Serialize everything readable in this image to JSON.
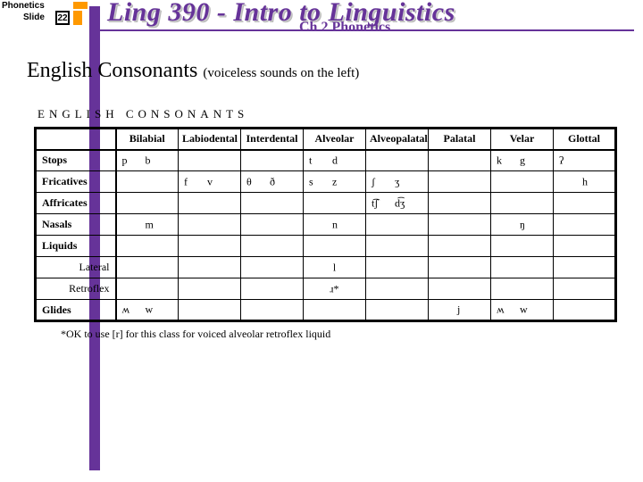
{
  "header": {
    "topic": "Phonetics",
    "slide_word": "Slide",
    "slide_number": "22",
    "course_title": "Ling 390 - Intro to Linguistics",
    "chapter_title": "Ch 2 Phonetics"
  },
  "title": {
    "main": "English Consonants",
    "sub": "(voiceless sounds on the left)"
  },
  "table": {
    "caption": "ENGLISH CONSONANTS",
    "columns": [
      "",
      "Bilabial",
      "Labiodental",
      "Interdental",
      "Alveolar",
      "Alveopalatal",
      "Palatal",
      "Velar",
      "Glottal"
    ],
    "rows": [
      {
        "label": "Stops",
        "cells": [
          {
            "vl": "p",
            "vd": "b"
          },
          {},
          {},
          {
            "vl": "t",
            "vd": "d"
          },
          {},
          {},
          {
            "vl": "k",
            "vd": "g"
          },
          {
            "vl": "ʔ"
          }
        ]
      },
      {
        "label": "Fricatives",
        "cells": [
          {},
          {
            "vl": "f",
            "vd": "v"
          },
          {
            "vl": "θ",
            "vd": "ð"
          },
          {
            "vl": "s",
            "vd": "z"
          },
          {
            "vl": "ʃ",
            "vd": "ʒ"
          },
          {},
          {},
          {
            "vd": "h"
          }
        ]
      },
      {
        "label": "Affricates",
        "cells": [
          {},
          {},
          {},
          {},
          {
            "vl": "t͡ʃ",
            "vd": "d͡ʒ"
          },
          {},
          {},
          {}
        ]
      },
      {
        "label": "Nasals",
        "cells": [
          {
            "vd": "m"
          },
          {},
          {},
          {
            "vd": "n"
          },
          {},
          {},
          {
            "vd": "ŋ"
          },
          {}
        ]
      },
      {
        "label": "Liquids",
        "cells": [
          {},
          {},
          {},
          {},
          {},
          {},
          {},
          {}
        ]
      },
      {
        "label": "Lateral",
        "sub": true,
        "cells": [
          {},
          {},
          {},
          {
            "ctr": "l"
          },
          {},
          {},
          {},
          {}
        ]
      },
      {
        "label": "Retroflex",
        "sub": true,
        "cells": [
          {},
          {},
          {},
          {
            "ctr": "ɹ*"
          },
          {},
          {},
          {},
          {}
        ]
      },
      {
        "label": "Glides",
        "cells": [
          {
            "vl": "ʍ",
            "vd": "w"
          },
          {},
          {},
          {},
          {},
          {
            "vd": "j"
          },
          {
            "vl": "ʍ",
            "vd": "w"
          },
          {}
        ]
      }
    ],
    "footnote": "*OK to use [r] for this class for voiced alveolar retroflex liquid"
  },
  "colors": {
    "purple": "#663399",
    "orange": "#ff9900"
  }
}
